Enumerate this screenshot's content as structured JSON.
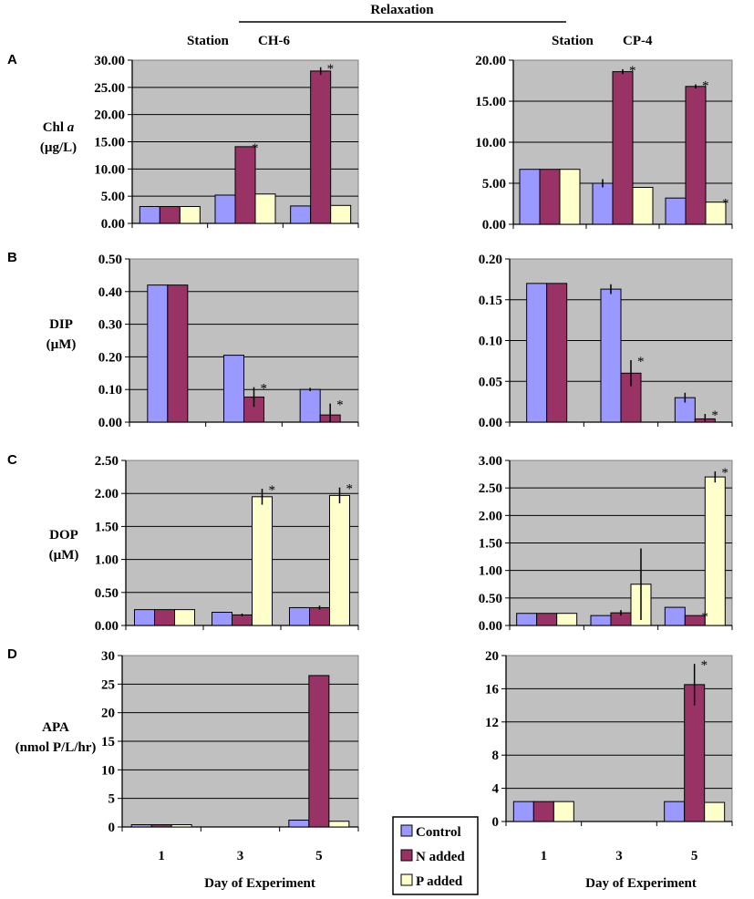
{
  "figure": {
    "title": "Relaxation",
    "stations": [
      {
        "prefix": "Station",
        "name": "CH-6"
      },
      {
        "prefix": "Station",
        "name": "CP-4"
      }
    ],
    "xlabel": "Day of Experiment",
    "colors": {
      "Control": "#9999ff",
      "N added": "#993366",
      "P added": "#ffffcc",
      "plot_bg": "#c0c0c0"
    }
  },
  "legend": [
    "Control",
    "N added",
    "P added"
  ],
  "chart_data": [
    {
      "type": "bar",
      "id": "A-CH6",
      "panel": "A",
      "station": "CH-6",
      "ylabel": [
        "Chl a",
        "(µg/L)"
      ],
      "ylim": [
        0,
        30
      ],
      "yticks": [
        0,
        5,
        10,
        15,
        20,
        25,
        30
      ],
      "ytick_labels": [
        "0.00",
        "5.00",
        "10.00",
        "15.00",
        "20.00",
        "25.00",
        "30.00"
      ],
      "categories": [
        "1",
        "3",
        "5"
      ],
      "series": [
        {
          "name": "Control",
          "values": [
            3.1,
            5.2,
            3.2
          ]
        },
        {
          "name": "N added",
          "values": [
            3.1,
            14.1,
            28.0
          ]
        },
        {
          "name": "P added",
          "values": [
            3.1,
            5.4,
            3.3
          ]
        }
      ],
      "errors": [
        {
          "series": "N added",
          "cat": 2,
          "err": 0.7
        }
      ],
      "stars": [
        {
          "series": "N added",
          "cat": 1
        },
        {
          "series": "N added",
          "cat": 2
        }
      ]
    },
    {
      "type": "bar",
      "id": "A-CP4",
      "panel": "",
      "station": "CP-4",
      "ylabel": [],
      "ylim": [
        0,
        20
      ],
      "yticks": [
        0,
        5,
        10,
        15,
        20
      ],
      "ytick_labels": [
        "0.00",
        "5.00",
        "10.00",
        "15.00",
        "20.00"
      ],
      "categories": [
        "1",
        "3",
        "5"
      ],
      "series": [
        {
          "name": "Control",
          "values": [
            6.7,
            5.0,
            3.2
          ]
        },
        {
          "name": "N added",
          "values": [
            6.7,
            18.6,
            16.8
          ]
        },
        {
          "name": "P added",
          "values": [
            6.7,
            4.5,
            2.7
          ]
        }
      ],
      "errors": [
        {
          "series": "Control",
          "cat": 1,
          "err": 0.5
        },
        {
          "series": "N added",
          "cat": 1,
          "err": 0.3
        },
        {
          "series": "N added",
          "cat": 2,
          "err": 0.25
        }
      ],
      "stars": [
        {
          "series": "N added",
          "cat": 1
        },
        {
          "series": "N added",
          "cat": 2
        },
        {
          "series": "P added",
          "cat": 2
        }
      ]
    },
    {
      "type": "bar",
      "id": "B-CH6",
      "panel": "B",
      "station": "CH-6",
      "ylabel": [
        "DIP",
        "(µM)"
      ],
      "ylim": [
        0,
        0.5
      ],
      "yticks": [
        0,
        0.1,
        0.2,
        0.3,
        0.4,
        0.5
      ],
      "ytick_labels": [
        "0.00",
        "0.10",
        "0.20",
        "0.30",
        "0.40",
        "0.50"
      ],
      "categories": [
        "1",
        "3",
        "5"
      ],
      "series": [
        {
          "name": "Control",
          "values": [
            0.42,
            0.205,
            0.1
          ]
        },
        {
          "name": "N added",
          "values": [
            0.42,
            0.077,
            0.022
          ]
        }
      ],
      "errors": [
        {
          "series": "N added",
          "cat": 1,
          "err": 0.03
        },
        {
          "series": "Control",
          "cat": 2,
          "err": 0.005
        },
        {
          "series": "N added",
          "cat": 2,
          "err": 0.035
        }
      ],
      "stars": [
        {
          "series": "N added",
          "cat": 1
        },
        {
          "series": "N added",
          "cat": 2
        }
      ]
    },
    {
      "type": "bar",
      "id": "B-CP4",
      "panel": "",
      "station": "CP-4",
      "ylabel": [],
      "ylim": [
        0,
        0.2
      ],
      "yticks": [
        0,
        0.05,
        0.1,
        0.15,
        0.2
      ],
      "ytick_labels": [
        "0.00",
        "0.05",
        "0.10",
        "0.15",
        "0.20"
      ],
      "categories": [
        "1",
        "3",
        "5"
      ],
      "series": [
        {
          "name": "Control",
          "values": [
            0.17,
            0.163,
            0.03
          ]
        },
        {
          "name": "N added",
          "values": [
            0.17,
            0.06,
            0.004
          ]
        }
      ],
      "errors": [
        {
          "series": "Control",
          "cat": 1,
          "err": 0.006
        },
        {
          "series": "N added",
          "cat": 1,
          "err": 0.016
        },
        {
          "series": "Control",
          "cat": 2,
          "err": 0.006
        },
        {
          "series": "N added",
          "cat": 2,
          "err": 0.006
        }
      ],
      "stars": [
        {
          "series": "N added",
          "cat": 1
        },
        {
          "series": "N added",
          "cat": 2
        }
      ]
    },
    {
      "type": "bar",
      "id": "C-CH6",
      "panel": "C",
      "station": "CH-6",
      "ylabel": [
        "DOP",
        "(µM)"
      ],
      "ylim": [
        0,
        2.5
      ],
      "yticks": [
        0,
        0.5,
        1,
        1.5,
        2,
        2.5
      ],
      "ytick_labels": [
        "0.00",
        "0.50",
        "1.00",
        "1.50",
        "2.00",
        "2.50"
      ],
      "categories": [
        "1",
        "3",
        "5"
      ],
      "series": [
        {
          "name": "Control",
          "values": [
            0.24,
            0.2,
            0.27
          ]
        },
        {
          "name": "N added",
          "values": [
            0.24,
            0.16,
            0.27
          ]
        },
        {
          "name": "P added",
          "values": [
            0.24,
            1.95,
            1.97
          ]
        }
      ],
      "errors": [
        {
          "series": "N added",
          "cat": 1,
          "err": 0.02
        },
        {
          "series": "N added",
          "cat": 2,
          "err": 0.03
        },
        {
          "series": "P added",
          "cat": 1,
          "err": 0.12
        },
        {
          "series": "P added",
          "cat": 2,
          "err": 0.12
        }
      ],
      "stars": [
        {
          "series": "P added",
          "cat": 1
        },
        {
          "series": "P added",
          "cat": 2
        }
      ]
    },
    {
      "type": "bar",
      "id": "C-CP4",
      "panel": "",
      "station": "CP-4",
      "ylabel": [],
      "ylim": [
        0,
        3
      ],
      "yticks": [
        0,
        0.5,
        1,
        1.5,
        2,
        2.5,
        3
      ],
      "ytick_labels": [
        "0.00",
        "0.50",
        "1.00",
        "1.50",
        "2.00",
        "2.50",
        "3.00"
      ],
      "categories": [
        "1",
        "3",
        "5"
      ],
      "series": [
        {
          "name": "Control",
          "values": [
            0.22,
            0.18,
            0.33
          ]
        },
        {
          "name": "N added",
          "values": [
            0.22,
            0.23,
            0.18
          ]
        },
        {
          "name": "P added",
          "values": [
            0.22,
            0.75,
            2.7
          ]
        }
      ],
      "errors": [
        {
          "series": "N added",
          "cat": 1,
          "err": 0.05
        },
        {
          "series": "P added",
          "cat": 1,
          "err": 0.65
        },
        {
          "series": "P added",
          "cat": 2,
          "err": 0.1
        }
      ],
      "stars": [
        {
          "series": "N added",
          "cat": 2
        },
        {
          "series": "P added",
          "cat": 2
        }
      ]
    },
    {
      "type": "bar",
      "id": "D-CH6",
      "panel": "D",
      "station": "CH-6",
      "ylabel": [
        "APA",
        "(nmol P/L/hr)"
      ],
      "ylim": [
        0,
        30
      ],
      "yticks": [
        0,
        5,
        10,
        15,
        20,
        25,
        30
      ],
      "ytick_labels": [
        "0",
        "5",
        "10",
        "15",
        "20",
        "25",
        "30"
      ],
      "categories": [
        "1",
        "3",
        "5"
      ],
      "series": [
        {
          "name": "Control",
          "values": [
            0.4,
            null,
            1.2
          ]
        },
        {
          "name": "N added",
          "values": [
            0.4,
            null,
            26.5
          ]
        },
        {
          "name": "P added",
          "values": [
            0.4,
            null,
            1.0
          ]
        }
      ],
      "errors": [],
      "stars": []
    },
    {
      "type": "bar",
      "id": "D-CP4",
      "panel": "",
      "station": "CP-4",
      "ylabel": [],
      "ylim": [
        0,
        20
      ],
      "yticks": [
        0,
        4,
        8,
        12,
        16,
        20
      ],
      "ytick_labels": [
        "0",
        "4",
        "8",
        "12",
        "16",
        "20"
      ],
      "categories": [
        "1",
        "3",
        "5"
      ],
      "series": [
        {
          "name": "Control",
          "values": [
            2.4,
            null,
            2.4
          ]
        },
        {
          "name": "N added",
          "values": [
            2.4,
            null,
            16.5
          ]
        },
        {
          "name": "P added",
          "values": [
            2.4,
            null,
            2.3
          ]
        }
      ],
      "errors": [
        {
          "series": "N added",
          "cat": 2,
          "err": 2.5
        }
      ],
      "stars": [
        {
          "series": "N added",
          "cat": 2
        }
      ]
    }
  ]
}
